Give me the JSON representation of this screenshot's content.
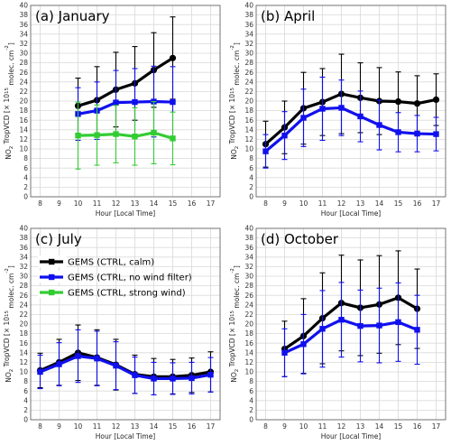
{
  "chart_data": [
    {
      "type": "line",
      "title": "(a) January",
      "xlabel": "Hour [Local Time]",
      "ylabel_parts": [
        "NO",
        "2",
        " TropVCD [× 10",
        "15",
        " molec. cm",
        "-2",
        "]"
      ],
      "xlim": [
        7.5,
        17.5
      ],
      "ylim": [
        0,
        40
      ],
      "xticks": [
        8,
        9,
        10,
        11,
        12,
        13,
        14,
        15,
        16,
        17
      ],
      "yticks": [
        0,
        2,
        4,
        6,
        8,
        10,
        12,
        14,
        16,
        18,
        20,
        22,
        24,
        26,
        28,
        30,
        32,
        34,
        36,
        38,
        40
      ],
      "grid": true,
      "series": [
        {
          "name": "GEMS (CTRL, calm)",
          "color": "#000000",
          "x": [
            10,
            11,
            12,
            13,
            14,
            15
          ],
          "y": [
            19.0,
            20.2,
            22.4,
            23.7,
            26.5,
            29.0
          ],
          "err": [
            5.8,
            7.0,
            7.8,
            7.7,
            7.8,
            8.6
          ]
        },
        {
          "name": "GEMS (CTRL, no wind filter)",
          "color": "#1010ee",
          "x": [
            10,
            11,
            12,
            13,
            14,
            15
          ],
          "y": [
            17.3,
            18.0,
            19.7,
            19.8,
            19.9,
            19.8
          ],
          "err": [
            5.5,
            6.0,
            6.7,
            7.0,
            7.4,
            7.4
          ]
        },
        {
          "name": "GEMS (CTRL, strong wind)",
          "color": "#33cc33",
          "x": [
            10,
            11,
            12,
            13,
            14,
            15
          ],
          "y": [
            12.8,
            12.9,
            13.1,
            12.6,
            13.4,
            12.2
          ],
          "err": [
            7.0,
            6.3,
            6.0,
            6.0,
            6.5,
            5.5
          ]
        }
      ]
    },
    {
      "type": "line",
      "title": "(b) April",
      "xlabel": "Hour [Local Time]",
      "ylabel_parts": [
        "NO",
        "2",
        " TropVCD [× 10",
        "15",
        " molec. cm",
        "-2",
        "]"
      ],
      "xlim": [
        7.5,
        17.5
      ],
      "ylim": [
        0,
        40
      ],
      "xticks": [
        8,
        9,
        10,
        11,
        12,
        13,
        14,
        15,
        16,
        17
      ],
      "yticks": [
        0,
        2,
        4,
        6,
        8,
        10,
        12,
        14,
        16,
        18,
        20,
        22,
        24,
        26,
        28,
        30,
        32,
        34,
        36,
        38,
        40
      ],
      "grid": true,
      "series": [
        {
          "name": "GEMS (CTRL, calm)",
          "color": "#000000",
          "x": [
            8,
            9,
            10,
            11,
            12,
            13,
            14,
            15,
            16,
            17
          ],
          "y": [
            11.0,
            14.5,
            18.5,
            19.8,
            21.5,
            20.7,
            20.0,
            19.9,
            19.5,
            20.3
          ],
          "err": [
            4.8,
            5.5,
            7.5,
            7.0,
            8.3,
            7.3,
            7.0,
            6.2,
            5.8,
            5.4
          ]
        },
        {
          "name": "GEMS (CTRL, no wind filter)",
          "color": "#1010ee",
          "x": [
            8,
            9,
            10,
            11,
            12,
            13,
            14,
            15,
            16,
            17
          ],
          "y": [
            9.5,
            12.8,
            16.5,
            18.4,
            18.6,
            16.8,
            15.0,
            13.5,
            13.2,
            13.1
          ],
          "err": [
            3.5,
            5.0,
            6.0,
            6.6,
            5.8,
            5.3,
            5.2,
            4.1,
            3.8,
            3.5
          ]
        }
      ]
    },
    {
      "type": "line",
      "title": "(c) July",
      "xlabel": "Hour [Local Time]",
      "ylabel_parts": [
        "NO",
        "2",
        " TropVCD [× 10",
        "15",
        " molec. cm",
        "-2",
        "]"
      ],
      "xlim": [
        7.5,
        17.5
      ],
      "ylim": [
        0,
        40
      ],
      "xticks": [
        8,
        9,
        10,
        11,
        12,
        13,
        14,
        15,
        16,
        17
      ],
      "yticks": [
        0,
        2,
        4,
        6,
        8,
        10,
        12,
        14,
        16,
        18,
        20,
        22,
        24,
        26,
        28,
        30,
        32,
        34,
        36,
        38,
        40
      ],
      "grid": true,
      "series": [
        {
          "name": "GEMS (CTRL, calm)",
          "color": "#000000",
          "x": [
            8,
            9,
            10,
            11,
            12,
            13,
            14,
            15,
            16,
            17
          ],
          "y": [
            10.3,
            12.0,
            14.0,
            13.0,
            11.5,
            9.5,
            9.0,
            9.0,
            9.3,
            10.0
          ],
          "err": [
            3.6,
            4.8,
            5.8,
            5.8,
            5.3,
            4.0,
            3.8,
            3.6,
            3.6,
            4.2
          ]
        },
        {
          "name": "GEMS (CTRL, no wind filter)",
          "color": "#1010ee",
          "x": [
            8,
            9,
            10,
            11,
            12,
            13,
            14,
            15,
            16,
            17
          ],
          "y": [
            10.0,
            11.6,
            13.3,
            12.8,
            11.3,
            9.3,
            8.6,
            8.6,
            8.7,
            9.4
          ],
          "err": [
            3.5,
            4.5,
            5.5,
            5.7,
            5.0,
            3.8,
            3.4,
            3.3,
            3.3,
            3.6
          ]
        }
      ]
    },
    {
      "type": "line",
      "title": "(d) October",
      "xlabel": "Hour [Local Time]",
      "ylabel_parts": [
        "NO",
        "2",
        " TropVCD [× 10",
        "15",
        " molec. cm",
        "-2",
        "]"
      ],
      "xlim": [
        7.5,
        17.5
      ],
      "ylim": [
        0,
        40
      ],
      "xticks": [
        8,
        9,
        10,
        11,
        12,
        13,
        14,
        15,
        16,
        17
      ],
      "yticks": [
        0,
        2,
        4,
        6,
        8,
        10,
        12,
        14,
        16,
        18,
        20,
        22,
        24,
        26,
        28,
        30,
        32,
        34,
        36,
        38,
        40
      ],
      "grid": true,
      "series": [
        {
          "name": "GEMS (CTRL, calm)",
          "color": "#000000",
          "x": [
            9,
            10,
            11,
            12,
            13,
            14,
            15,
            16
          ],
          "y": [
            14.8,
            17.5,
            21.2,
            24.4,
            23.4,
            24.1,
            25.5,
            23.2
          ],
          "err": [
            5.8,
            7.8,
            9.5,
            10.0,
            10.0,
            10.2,
            9.8,
            8.3
          ]
        },
        {
          "name": "GEMS (CTRL, no wind filter)",
          "color": "#1010ee",
          "x": [
            9,
            10,
            11,
            12,
            13,
            14,
            15,
            16
          ],
          "y": [
            14.0,
            15.8,
            19.0,
            20.9,
            19.6,
            19.7,
            20.4,
            18.8
          ],
          "err": [
            5.0,
            6.2,
            8.0,
            7.8,
            7.5,
            7.8,
            8.2,
            7.2
          ]
        }
      ]
    }
  ],
  "legend": {
    "placement": "panel (c), upper-left",
    "entries": [
      {
        "label": "GEMS (CTRL, calm)",
        "color": "#000000"
      },
      {
        "label": "GEMS (CTRL, no wind filter)",
        "color": "#1010ee"
      },
      {
        "label": "GEMS (CTRL, strong wind)",
        "color": "#33cc33"
      }
    ]
  }
}
